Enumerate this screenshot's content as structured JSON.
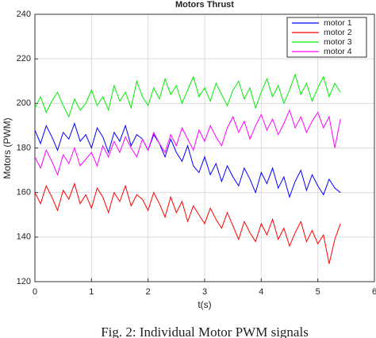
{
  "chart_data": {
    "type": "line",
    "title": "Motors Thrust",
    "x_label": "t(s)",
    "y_label": "Motors (PWM)",
    "caption": "Fig. 2: Individual Motor PWM signals",
    "x": [
      0,
      0.1,
      0.2,
      0.3,
      0.4,
      0.5,
      0.6,
      0.7,
      0.8,
      0.9,
      1,
      1.1,
      1.2,
      1.3,
      1.4,
      1.5,
      1.6,
      1.7,
      1.8,
      1.9,
      2,
      2.1,
      2.2,
      2.3,
      2.4,
      2.5,
      2.6,
      2.7,
      2.8,
      2.9,
      3,
      3.1,
      3.2,
      3.3,
      3.4,
      3.5,
      3.6,
      3.7,
      3.8,
      3.9,
      4,
      4.1,
      4.2,
      4.3,
      4.4,
      4.5,
      4.6,
      4.7,
      4.8,
      4.9,
      5,
      5.1,
      5.2,
      5.3,
      5.4
    ],
    "series": [
      {
        "name": "motor 1",
        "color": "#0000ff",
        "values": [
          188,
          182,
          190,
          185,
          179,
          187,
          184,
          191,
          183,
          186,
          180,
          189,
          185,
          178,
          187,
          183,
          190,
          181,
          186,
          184,
          179,
          186,
          182,
          176,
          184,
          178,
          174,
          181,
          172,
          169,
          176,
          168,
          173,
          165,
          172,
          167,
          163,
          171,
          166,
          160,
          169,
          164,
          171,
          162,
          167,
          158,
          165,
          170,
          161,
          168,
          163,
          159,
          166,
          162,
          160
        ]
      },
      {
        "name": "motor 2",
        "color": "#ff0000",
        "values": [
          160,
          155,
          163,
          158,
          152,
          161,
          157,
          164,
          155,
          159,
          153,
          162,
          158,
          151,
          160,
          156,
          163,
          154,
          159,
          157,
          152,
          160,
          155,
          149,
          158,
          151,
          156,
          147,
          154,
          150,
          146,
          153,
          148,
          144,
          151,
          145,
          139,
          147,
          142,
          138,
          146,
          141,
          148,
          139,
          144,
          136,
          142,
          147,
          138,
          143,
          137,
          141,
          128,
          139,
          146
        ]
      },
      {
        "name": "motor 3",
        "color": "#00ee00",
        "values": [
          198,
          203,
          196,
          201,
          205,
          199,
          194,
          202,
          197,
          200,
          206,
          199,
          203,
          197,
          208,
          201,
          205,
          198,
          210,
          203,
          199,
          207,
          202,
          211,
          204,
          208,
          200,
          206,
          212,
          203,
          207,
          201,
          209,
          204,
          199,
          206,
          210,
          202,
          207,
          198,
          205,
          211,
          203,
          208,
          200,
          206,
          213,
          204,
          209,
          201,
          207,
          212,
          203,
          209,
          205
        ]
      },
      {
        "name": "motor 4",
        "color": "#ff00ff",
        "values": [
          176,
          171,
          179,
          174,
          168,
          177,
          173,
          180,
          172,
          175,
          178,
          172,
          181,
          176,
          183,
          178,
          185,
          180,
          176,
          184,
          179,
          187,
          182,
          178,
          186,
          181,
          189,
          184,
          179,
          188,
          183,
          190,
          185,
          181,
          189,
          194,
          187,
          192,
          184,
          190,
          195,
          188,
          193,
          186,
          191,
          197,
          189,
          194,
          187,
          192,
          196,
          189,
          194,
          180,
          193
        ]
      }
    ],
    "xlim": [
      0,
      6
    ],
    "xticks": [
      0,
      1,
      2,
      3,
      4,
      5,
      6
    ],
    "ylim": [
      120,
      240
    ],
    "yticks": [
      120,
      140,
      160,
      180,
      200,
      220,
      240
    ],
    "grid": true,
    "legend": "top-right"
  }
}
